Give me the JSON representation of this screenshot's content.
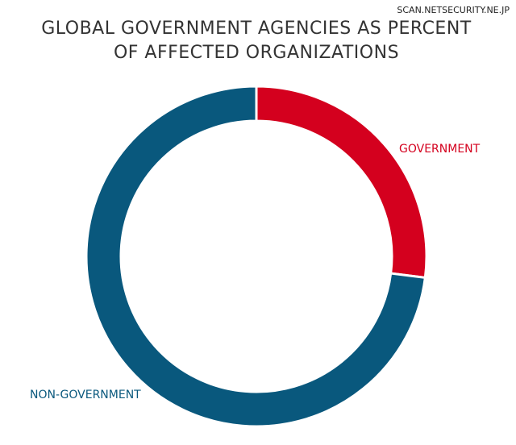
{
  "chart_data": {
    "type": "donut",
    "title": [
      "GLOBAL GOVERNMENT AGENCIES AS PERCENT",
      "OF AFFECTED ORGANIZATIONS"
    ],
    "watermark": "SCAN.NETSECURITY.NE.JP",
    "categories": [
      "GOVERNMENT",
      "NON-GOVERNMENT"
    ],
    "values": [
      27,
      73
    ],
    "colors": [
      "#d4001e",
      "#09587d"
    ]
  }
}
